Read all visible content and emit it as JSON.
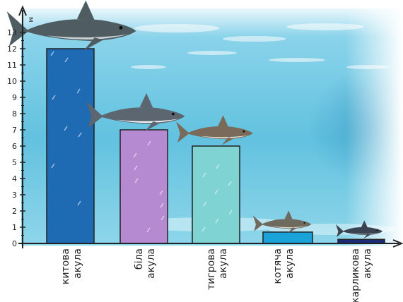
{
  "chart_data": {
    "type": "bar",
    "title": "",
    "xlabel": "",
    "ylabel": "м",
    "ylim": [
      0,
      14
    ],
    "yticks": [
      0,
      1,
      2,
      3,
      4,
      5,
      6,
      7,
      8,
      9,
      10,
      11,
      12,
      13
    ],
    "grid": false,
    "categories": [
      {
        "line1": "китова",
        "line2": "акула"
      },
      {
        "line1": "біла",
        "line2": "акула"
      },
      {
        "line1": "тигрова",
        "line2": "акула"
      },
      {
        "line1": "котяча",
        "line2": "акула"
      },
      {
        "line1": "карликова",
        "line2": "акула"
      }
    ],
    "values": [
      12,
      7,
      6,
      0.7,
      0.25
    ],
    "bar_colors": [
      "#1e6bb3",
      "#b58ad0",
      "#7fd3d2",
      "#1aa3d9",
      "#1c2b78"
    ]
  },
  "colors": {
    "sky_top": "#ffffff",
    "water_mid": "#67c7e2",
    "water_deep": "#3aa3cf",
    "axis": "#222222"
  },
  "icons": [
    "whale-shark-icon",
    "white-shark-icon",
    "tiger-shark-icon",
    "cat-shark-icon",
    "dwarf-shark-icon"
  ]
}
